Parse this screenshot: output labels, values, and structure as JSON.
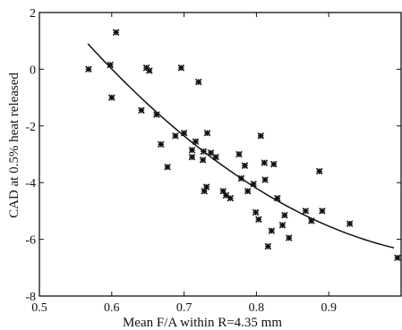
{
  "chart_data": {
    "type": "scatter",
    "xlabel": "Mean F/A within R=4.35 mm",
    "ylabel": "CAD at 0.5% heat released",
    "xlim": [
      0.5,
      1.0
    ],
    "ylim": [
      -8,
      2
    ],
    "xticks": [
      0.5,
      0.6,
      0.7,
      0.8,
      0.9
    ],
    "xtick_labels": [
      "0.5",
      "0.6",
      "0.7",
      "0.8",
      "0.9"
    ],
    "yticks": [
      -8,
      -6,
      -4,
      -2,
      0,
      2
    ],
    "ytick_labels": [
      "-8",
      "-6",
      "-4",
      "-2",
      "0",
      "2"
    ],
    "grid": false,
    "marker_color": "#111111",
    "line_color": "#111111",
    "points": [
      [
        0.568,
        0.0
      ],
      [
        0.598,
        0.15
      ],
      [
        0.606,
        1.3
      ],
      [
        0.6,
        -1.0
      ],
      [
        0.641,
        -1.45
      ],
      [
        0.648,
        0.05
      ],
      [
        0.652,
        -0.05
      ],
      [
        0.662,
        -1.6
      ],
      [
        0.668,
        -2.65
      ],
      [
        0.677,
        -3.45
      ],
      [
        0.688,
        -2.35
      ],
      [
        0.696,
        0.05
      ],
      [
        0.7,
        -2.25
      ],
      [
        0.711,
        -2.85
      ],
      [
        0.711,
        -3.1
      ],
      [
        0.716,
        -2.55
      ],
      [
        0.72,
        -0.45
      ],
      [
        0.726,
        -3.2
      ],
      [
        0.727,
        -2.9
      ],
      [
        0.728,
        -4.3
      ],
      [
        0.731,
        -4.15
      ],
      [
        0.732,
        -2.25
      ],
      [
        0.737,
        -2.95
      ],
      [
        0.744,
        -3.1
      ],
      [
        0.754,
        -4.3
      ],
      [
        0.758,
        -4.45
      ],
      [
        0.764,
        -4.55
      ],
      [
        0.776,
        -3.0
      ],
      [
        0.779,
        -3.85
      ],
      [
        0.784,
        -3.4
      ],
      [
        0.788,
        -4.3
      ],
      [
        0.796,
        -4.05
      ],
      [
        0.799,
        -5.05
      ],
      [
        0.803,
        -5.3
      ],
      [
        0.806,
        -2.35
      ],
      [
        0.811,
        -3.3
      ],
      [
        0.812,
        -3.9
      ],
      [
        0.816,
        -6.25
      ],
      [
        0.821,
        -5.7
      ],
      [
        0.824,
        -3.35
      ],
      [
        0.829,
        -4.55
      ],
      [
        0.836,
        -5.5
      ],
      [
        0.839,
        -5.15
      ],
      [
        0.845,
        -5.95
      ],
      [
        0.868,
        -5.0
      ],
      [
        0.876,
        -5.35
      ],
      [
        0.887,
        -3.6
      ],
      [
        0.891,
        -5.0
      ],
      [
        0.929,
        -5.45
      ],
      [
        0.995,
        -6.65
      ]
    ],
    "fit_line": {
      "type": "quadratic",
      "x_range": [
        0.567,
        0.99
      ],
      "points": [
        [
          0.567,
          0.9
        ],
        [
          0.6,
          -0.2
        ],
        [
          0.7,
          -2.5
        ],
        [
          0.8,
          -4.2
        ],
        [
          0.9,
          -5.35
        ],
        [
          0.99,
          -6.3
        ]
      ]
    }
  }
}
